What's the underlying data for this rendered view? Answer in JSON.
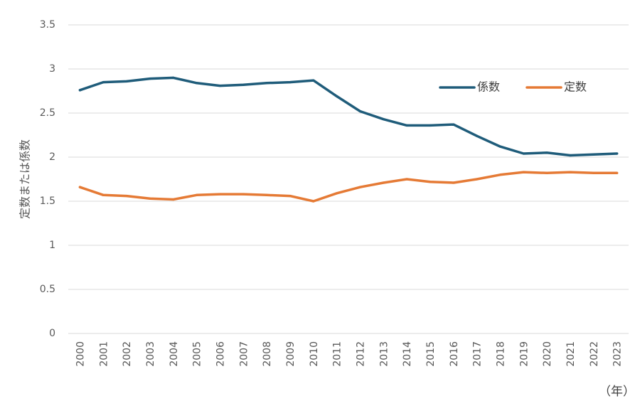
{
  "chart_data": {
    "type": "line",
    "ylabel": "定数または係数",
    "x_unit": "（年）",
    "ylim": [
      0,
      3.5
    ],
    "yticks": [
      "0",
      "0.5",
      "1",
      "1.5",
      "2",
      "2.5",
      "3",
      "3.5"
    ],
    "grid": true,
    "legend_position": "top-right",
    "categories": [
      "2000",
      "2001",
      "2002",
      "2003",
      "2004",
      "2005",
      "2006",
      "2007",
      "2008",
      "2009",
      "2010",
      "2011",
      "2012",
      "2013",
      "2014",
      "2015",
      "2016",
      "2017",
      "2018",
      "2019",
      "2020",
      "2021",
      "2022",
      "2023"
    ],
    "series": [
      {
        "name": "係数",
        "color": "#1f5c7a",
        "values": [
          2.76,
          2.85,
          2.86,
          2.89,
          2.9,
          2.84,
          2.81,
          2.82,
          2.84,
          2.85,
          2.87,
          2.69,
          2.52,
          2.43,
          2.36,
          2.36,
          2.37,
          2.24,
          2.12,
          2.04,
          2.05,
          2.02,
          2.03,
          2.04
        ]
      },
      {
        "name": "定数",
        "color": "#e57a35",
        "values": [
          1.66,
          1.57,
          1.56,
          1.53,
          1.52,
          1.57,
          1.58,
          1.58,
          1.57,
          1.56,
          1.5,
          1.59,
          1.66,
          1.71,
          1.75,
          1.72,
          1.71,
          1.75,
          1.8,
          1.83,
          1.82,
          1.83,
          1.82,
          1.82
        ]
      }
    ]
  }
}
